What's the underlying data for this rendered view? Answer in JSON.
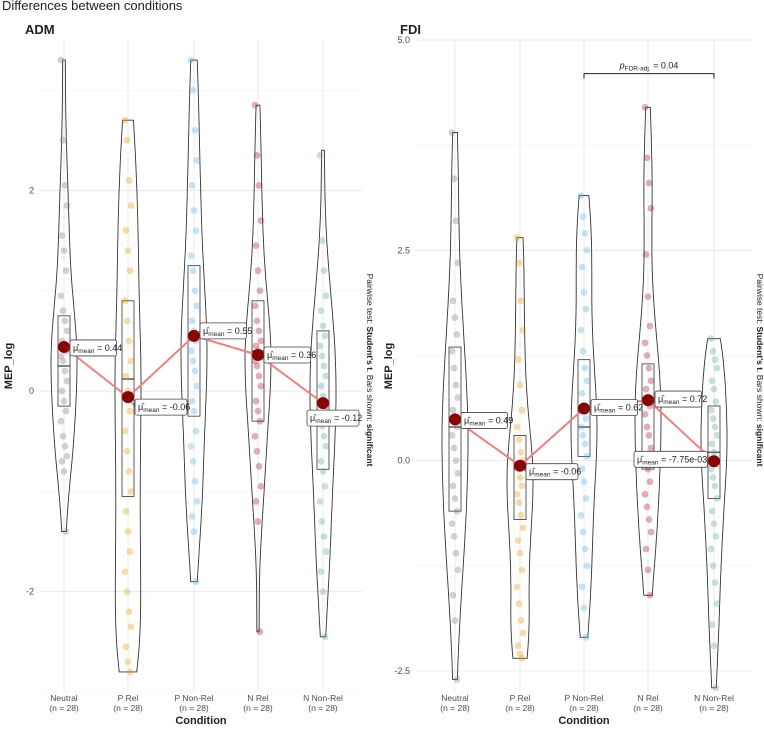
{
  "figure_title": "Differences between conditions",
  "colors": {
    "Neutral": "#7f7f7f",
    "P Rel": "#e69f00",
    "P Non-Rel": "#56b4e9",
    "N Rel": "#b2182b",
    "N Non-Rel": "#5fa8a0",
    "mean_line": "#f08080",
    "mean_point": "#8b0000"
  },
  "chart_data": [
    {
      "type": "violin",
      "title": "ADM",
      "xlabel": "Condition",
      "ylabel": "MEP_log",
      "ylim": [
        -3.0,
        3.5
      ],
      "yticks": [
        -2,
        0,
        2
      ],
      "ytick_labels": [
        "-2",
        "0",
        "2"
      ],
      "categories": [
        "Neutral",
        "P Rel",
        "P Non-Rel",
        "N Rel",
        "N Non-Rel"
      ],
      "n_labels": [
        "(n = 28)",
        "(n = 28)",
        "(n = 28)",
        "(n = 28)",
        "(n = 28)"
      ],
      "means": [
        0.44,
        -0.06,
        0.55,
        0.36,
        -0.12
      ],
      "mean_labels": [
        "0.44",
        "-0.06",
        "0.55",
        "0.36",
        "-0.12"
      ],
      "mean_symbol": "μ̂",
      "mean_subscript": "mean",
      "box_stats": [
        {
          "q1": -0.15,
          "median": 0.25,
          "q3": 0.75
        },
        {
          "q1": -1.05,
          "median": 0.12,
          "q3": 0.9
        },
        {
          "q1": -0.25,
          "median": 0.55,
          "q3": 1.25
        },
        {
          "q1": -0.3,
          "median": 0.4,
          "q3": 0.9
        },
        {
          "q1": -0.78,
          "median": -0.12,
          "q3": 0.6
        }
      ],
      "ranges": [
        [
          -1.4,
          3.3
        ],
        [
          -2.8,
          2.7
        ],
        [
          -1.9,
          3.3
        ],
        [
          -2.4,
          2.85
        ],
        [
          -2.45,
          2.4
        ]
      ],
      "points": [
        [
          3.3,
          2.5,
          2.05,
          1.85,
          1.55,
          1.4,
          1.2,
          0.95,
          0.8,
          0.7,
          0.6,
          0.5,
          0.45,
          0.4,
          0.35,
          0.3,
          0.2,
          0.1,
          0.0,
          -0.1,
          -0.2,
          -0.3,
          -0.45,
          -0.55,
          -0.65,
          -0.7,
          -0.8,
          -1.4
        ],
        [
          2.7,
          2.5,
          2.1,
          1.85,
          1.6,
          1.4,
          1.2,
          0.9,
          0.7,
          0.5,
          0.3,
          0.15,
          0.0,
          -0.2,
          -0.4,
          -0.6,
          -0.8,
          -1.0,
          -1.2,
          -1.4,
          -1.6,
          -1.8,
          -2.0,
          -2.2,
          -2.35,
          -2.55,
          -2.7,
          -2.8
        ],
        [
          3.3,
          3.0,
          2.6,
          2.3,
          2.05,
          1.8,
          1.6,
          1.35,
          1.2,
          1.0,
          0.85,
          0.7,
          0.6,
          0.5,
          0.4,
          0.3,
          0.2,
          0.05,
          -0.1,
          -0.2,
          -0.4,
          -0.55,
          -0.7,
          -0.9,
          -1.1,
          -1.25,
          -1.4,
          -1.9
        ],
        [
          2.85,
          2.35,
          2.05,
          1.7,
          1.45,
          1.2,
          1.0,
          0.85,
          0.7,
          0.6,
          0.5,
          0.45,
          0.4,
          0.35,
          0.3,
          0.25,
          0.15,
          0.05,
          -0.1,
          -0.2,
          -0.3,
          -0.45,
          -0.6,
          -0.75,
          -0.95,
          -1.1,
          -1.3,
          -2.4
        ],
        [
          2.35,
          1.5,
          1.2,
          0.95,
          0.8,
          0.65,
          0.55,
          0.45,
          0.35,
          0.25,
          0.15,
          0.05,
          -0.05,
          -0.15,
          -0.25,
          -0.35,
          -0.45,
          -0.55,
          -0.7,
          -0.8,
          -0.95,
          -1.1,
          -1.3,
          -1.45,
          -1.6,
          -1.8,
          -2.0,
          -2.45
        ]
      ],
      "caption_prefix": "Pairwise test: ",
      "caption_test": "Student's t",
      "caption_middle": ". Bars shown: ",
      "caption_suffix": "significant",
      "comparisons": []
    },
    {
      "type": "violin",
      "title": "FDI",
      "xlabel": "Condition",
      "ylabel": "MEP_log",
      "ylim": [
        -2.75,
        5.0
      ],
      "yticks": [
        -2.5,
        0.0,
        2.5,
        5.0
      ],
      "ytick_labels": [
        "-2.5",
        "0.0",
        "2.5",
        "5.0"
      ],
      "categories": [
        "Neutral",
        "P Rel",
        "P Non-Rel",
        "N Rel",
        "N Non-Rel"
      ],
      "n_labels": [
        "(n = 28)",
        "(n = 28)",
        "(n = 28)",
        "(n = 28)",
        "(n = 28)"
      ],
      "means": [
        0.49,
        -0.06,
        0.62,
        0.72,
        -0.00775
      ],
      "mean_labels": [
        "0.49",
        "-0.06",
        "0.62",
        "0.72",
        "-7.75e-03"
      ],
      "mean_symbol": "μ̂",
      "mean_subscript": "mean",
      "box_stats": [
        {
          "q1": -0.6,
          "median": 0.4,
          "q3": 1.35
        },
        {
          "q1": -0.7,
          "median": -0.1,
          "q3": 0.3
        },
        {
          "q1": 0.05,
          "median": 0.4,
          "q3": 1.2
        },
        {
          "q1": -0.1,
          "median": 0.7,
          "q3": 1.15
        },
        {
          "q1": -0.45,
          "median": 0.1,
          "q3": 0.65
        }
      ],
      "ranges": [
        [
          -2.6,
          3.9
        ],
        [
          -2.35,
          2.65
        ],
        [
          -2.1,
          3.15
        ],
        [
          -1.6,
          4.2
        ],
        [
          -2.7,
          1.45
        ]
      ],
      "points": [
        [
          3.9,
          3.35,
          2.85,
          2.35,
          1.9,
          1.7,
          1.5,
          1.3,
          1.1,
          0.9,
          0.75,
          0.6,
          0.5,
          0.4,
          0.3,
          0.15,
          0.0,
          -0.15,
          -0.3,
          -0.45,
          -0.6,
          -0.75,
          -0.9,
          -1.1,
          -1.3,
          -1.6,
          -1.9,
          -2.6
        ],
        [
          2.65,
          2.35,
          1.9,
          1.55,
          1.2,
          0.9,
          0.6,
          0.4,
          0.25,
          0.1,
          0.0,
          -0.1,
          -0.2,
          -0.3,
          -0.4,
          -0.5,
          -0.65,
          -0.8,
          -0.95,
          -1.1,
          -1.3,
          -1.5,
          -1.7,
          -1.9,
          -2.05,
          -2.2,
          -2.3,
          -2.35
        ],
        [
          3.15,
          2.9,
          2.7,
          2.5,
          2.3,
          2.0,
          1.8,
          1.55,
          1.3,
          1.1,
          0.95,
          0.8,
          0.65,
          0.5,
          0.4,
          0.3,
          0.2,
          0.05,
          -0.1,
          -0.25,
          -0.45,
          -0.65,
          -0.85,
          -1.05,
          -1.25,
          -1.5,
          -1.75,
          -2.1
        ],
        [
          4.2,
          3.6,
          3.3,
          3.0,
          2.45,
          1.95,
          1.6,
          1.4,
          1.25,
          1.1,
          0.95,
          0.85,
          0.75,
          0.65,
          0.55,
          0.4,
          0.3,
          0.15,
          0.0,
          -0.1,
          -0.25,
          -0.4,
          -0.55,
          -0.7,
          -0.85,
          -1.05,
          -1.3,
          -1.6
        ],
        [
          1.45,
          1.3,
          1.2,
          1.1,
          0.95,
          0.85,
          0.7,
          0.6,
          0.5,
          0.4,
          0.3,
          0.2,
          0.1,
          0.0,
          -0.1,
          -0.2,
          -0.3,
          -0.45,
          -0.6,
          -0.75,
          -0.9,
          -1.05,
          -1.25,
          -1.45,
          -1.7,
          -1.95,
          -2.2,
          -2.7
        ]
      ],
      "caption_prefix": "Pairwise test: ",
      "caption_test": "Student's t",
      "caption_middle": ". Bars shown: ",
      "caption_suffix": "significant",
      "comparisons": [
        {
          "from": "P Non-Rel",
          "to": "N Non-Rel",
          "y": 4.6,
          "label_prefix": "p",
          "label_sub": "FDR-adj.",
          "label_value": " = 0.04"
        }
      ]
    }
  ]
}
